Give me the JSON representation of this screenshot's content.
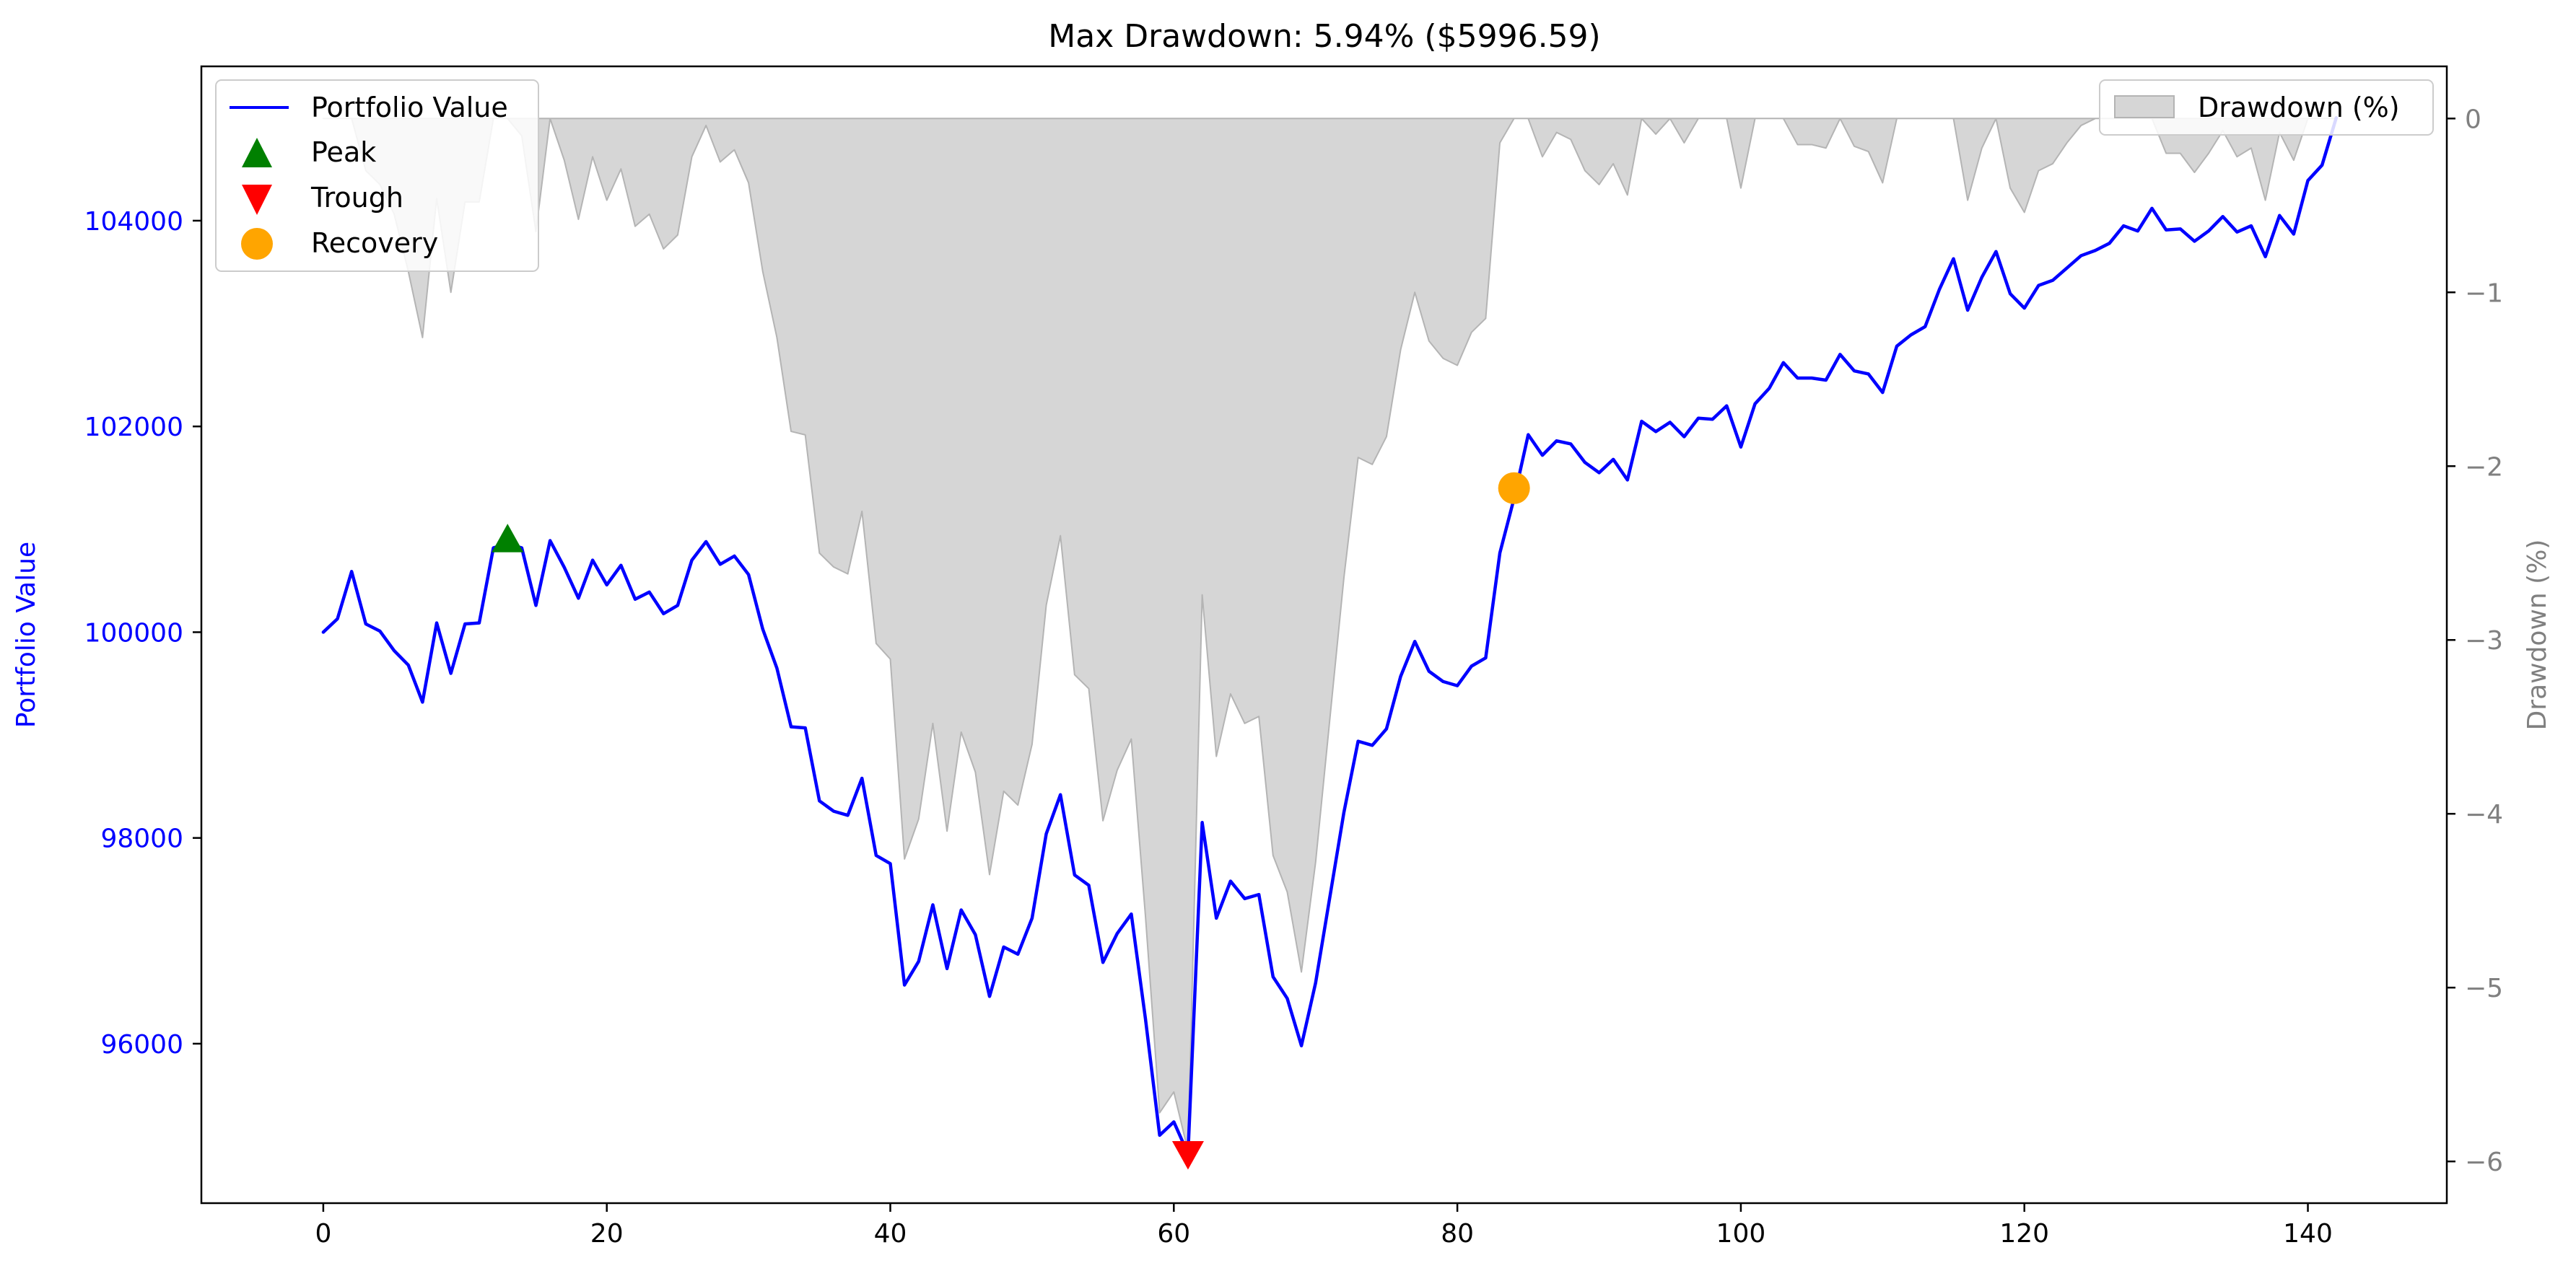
{
  "chart_data": {
    "type": "line",
    "title": "Max Drawdown: 5.94% ($5996.59)",
    "ylabel_left": "Portfolio Value",
    "ylabel_right": "Drawdown (%)",
    "xlim": [
      -8.6,
      149.8
    ],
    "ylim_left": [
      94450,
      105500
    ],
    "ylim_right": [
      -6.24,
      0.3
    ],
    "x_ticks": [
      0,
      20,
      40,
      60,
      80,
      100,
      120,
      140
    ],
    "y_ticks_left": [
      96000,
      98000,
      100000,
      102000,
      104000
    ],
    "y_ticks_right": [
      0,
      -1,
      -2,
      -3,
      -4,
      -5,
      -6
    ],
    "series": [
      {
        "name": "Portfolio Value",
        "kind": "line",
        "color": "#0000ff",
        "x_start": 0,
        "values": [
          100000,
          100130,
          100590,
          100080,
          100010,
          99820,
          99680,
          99320,
          100090,
          99600,
          100080,
          100090,
          100820,
          100860,
          100820,
          100260,
          100890,
          100630,
          100330,
          100700,
          100460,
          100650,
          100320,
          100390,
          100180,
          100260,
          100700,
          100880,
          100660,
          100740,
          100560,
          100030,
          99650,
          99080,
          99070,
          98360,
          98260,
          98220,
          98580,
          97830,
          97750,
          96570,
          96800,
          97350,
          96730,
          97300,
          97060,
          96460,
          96940,
          96870,
          97220,
          98040,
          98420,
          97640,
          97540,
          96790,
          97070,
          97260,
          96240,
          95110,
          95240,
          94930,
          98150,
          97220,
          97580,
          97410,
          97450,
          96650,
          96440,
          95980,
          96590,
          97420,
          98250,
          98940,
          98900,
          99060,
          99570,
          99910,
          99620,
          99520,
          99480,
          99670,
          99750,
          100770,
          101300,
          101920,
          101720,
          101860,
          101830,
          101650,
          101550,
          101680,
          101480,
          102050,
          101950,
          102040,
          101900,
          102080,
          102070,
          102200,
          101800,
          102220,
          102370,
          102620,
          102470,
          102470,
          102450,
          102700,
          102540,
          102510,
          102330,
          102780,
          102890,
          102970,
          103330,
          103630,
          103130,
          103450,
          103700,
          103290,
          103150,
          103370,
          103420,
          103540,
          103660,
          103710,
          103780,
          103950,
          103900,
          104120,
          103910,
          103920,
          103800,
          103900,
          104040,
          103890,
          103950,
          103650,
          104050,
          103870,
          104390,
          104540,
          105000
        ]
      },
      {
        "name": "Drawdown (%)",
        "kind": "area",
        "color": "#d6d6d6",
        "edge_color": "#b4b4b4",
        "x_start": 0,
        "values": [
          0,
          0,
          0,
          -0.3,
          -0.38,
          -0.55,
          -0.88,
          -1.26,
          -0.46,
          -1.0,
          -0.48,
          -0.48,
          0,
          0,
          -0.1,
          -0.65,
          0,
          -0.24,
          -0.58,
          -0.22,
          -0.47,
          -0.29,
          -0.62,
          -0.55,
          -0.75,
          -0.67,
          -0.22,
          -0.04,
          -0.25,
          -0.18,
          -0.37,
          -0.88,
          -1.26,
          -1.8,
          -1.82,
          -2.5,
          -2.58,
          -2.62,
          -2.26,
          -3.02,
          -3.11,
          -4.26,
          -4.03,
          -3.48,
          -4.1,
          -3.53,
          -3.76,
          -4.35,
          -3.87,
          -3.95,
          -3.6,
          -2.8,
          -2.4,
          -3.2,
          -3.28,
          -4.04,
          -3.75,
          -3.57,
          -4.59,
          -5.72,
          -5.6,
          -5.94,
          -2.74,
          -3.67,
          -3.31,
          -3.48,
          -3.44,
          -4.24,
          -4.45,
          -4.91,
          -4.28,
          -3.46,
          -2.64,
          -1.95,
          -1.99,
          -1.83,
          -1.33,
          -1.0,
          -1.28,
          -1.38,
          -1.42,
          -1.23,
          -1.15,
          -0.14,
          0,
          0,
          -0.22,
          -0.08,
          -0.12,
          -0.3,
          -0.38,
          -0.26,
          -0.44,
          0,
          -0.09,
          0,
          -0.14,
          0,
          0,
          0,
          -0.4,
          0,
          0,
          0,
          -0.15,
          -0.15,
          -0.17,
          0,
          -0.16,
          -0.19,
          -0.37,
          0,
          0,
          0,
          0,
          0,
          -0.47,
          -0.17,
          0,
          -0.4,
          -0.54,
          -0.3,
          -0.26,
          -0.14,
          -0.04,
          0,
          0,
          0,
          0,
          0,
          -0.2,
          -0.2,
          -0.31,
          -0.2,
          -0.07,
          -0.22,
          -0.17,
          -0.47,
          -0.08,
          -0.24,
          0,
          0,
          0
        ]
      }
    ],
    "markers": [
      {
        "name": "Peak",
        "shape": "triangle-up",
        "color": "#008000",
        "x": 13,
        "y": 100900
      },
      {
        "name": "Trough",
        "shape": "triangle-down",
        "color": "#ff0000",
        "x": 61,
        "y": 94930
      },
      {
        "name": "Recovery",
        "shape": "circle",
        "color": "#ffa500",
        "x": 84,
        "y": 101400
      }
    ],
    "legend_left": {
      "placement": "top-left",
      "entries": [
        "Portfolio Value",
        "Peak",
        "Trough",
        "Recovery"
      ]
    },
    "legend_right": {
      "placement": "top-right",
      "entries": [
        "Drawdown (%)"
      ]
    },
    "grid": false,
    "colors": {
      "left_axis": "#0000ff",
      "right_axis": "#808080"
    }
  }
}
